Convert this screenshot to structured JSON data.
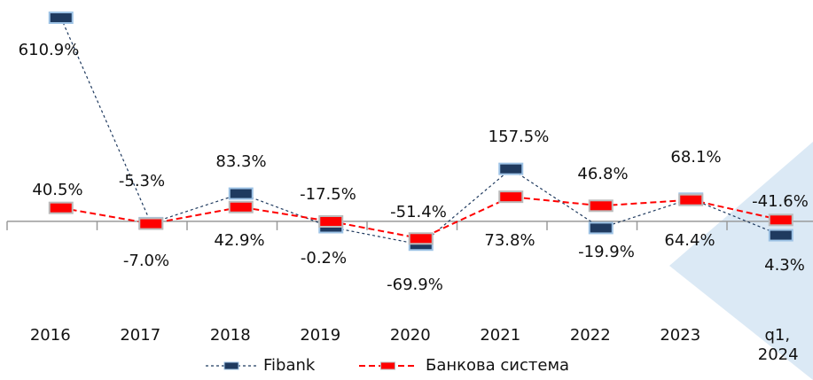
{
  "chart_data": {
    "type": "line",
    "categories": [
      "2016",
      "2017",
      "2018",
      "2019",
      "2020",
      "2021",
      "2022",
      "2023",
      "q1, 2024"
    ],
    "series": [
      {
        "name": "Fibank",
        "color": "#1f3a5f",
        "values": [
          610.9,
          -5.3,
          83.3,
          -17.5,
          -69.9,
          157.5,
          -19.9,
          68.1,
          -41.6
        ],
        "value_labels": [
          "610.9%",
          "-5.3%",
          "83.3%",
          "-17.5%",
          "-69.9%",
          "157.5%",
          "-19.9%",
          "68.1%",
          "-41.6%"
        ]
      },
      {
        "name": "Банкова система",
        "color": "#ff0000",
        "values": [
          40.5,
          -7.0,
          42.9,
          -0.2,
          -51.4,
          73.8,
          46.8,
          64.4,
          4.3
        ],
        "value_labels": [
          "40.5%",
          "-7.0%",
          "42.9%",
          "-0.2%",
          "-51.4%",
          "73.8%",
          "46.8%",
          "64.4%",
          "4.3%"
        ]
      }
    ],
    "ylim": [
      -250,
      620
    ],
    "legend": "bottom"
  }
}
